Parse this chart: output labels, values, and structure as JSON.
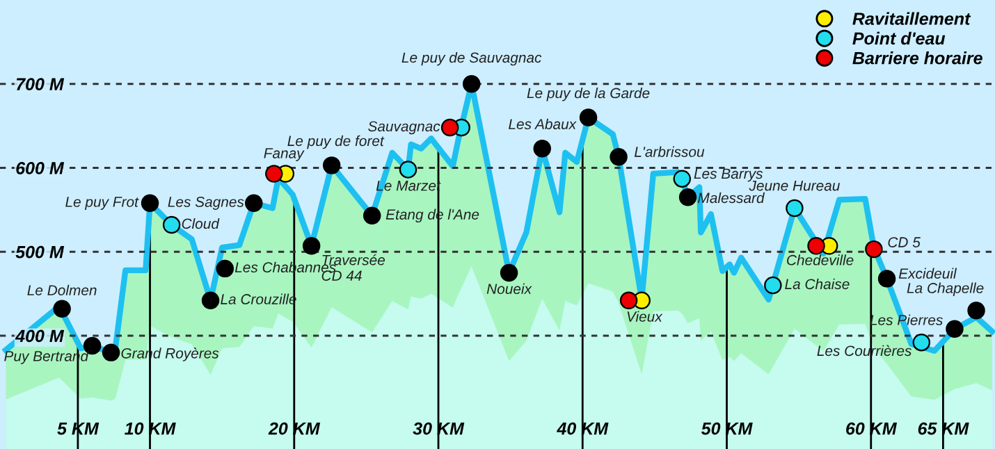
{
  "chart_data": {
    "type": "area",
    "xlim": [
      -0.4,
      68.6
    ],
    "ylim": [
      265,
      800
    ],
    "xticks": [
      {
        "value": 5,
        "label": "5 KM"
      },
      {
        "value": 10,
        "label": "10 KM"
      },
      {
        "value": 20,
        "label": "20 KM"
      },
      {
        "value": 30,
        "label": "30 KM"
      },
      {
        "value": 40,
        "label": "40 KM"
      },
      {
        "value": 50,
        "label": "50 KM"
      },
      {
        "value": 60,
        "label": "60 KM"
      },
      {
        "value": 65,
        "label": "65 KM"
      }
    ],
    "yticks": [
      {
        "value": 400,
        "label": "400 M"
      },
      {
        "value": 500,
        "label": "500 M"
      },
      {
        "value": 600,
        "label": "600 M"
      },
      {
        "value": 700,
        "label": "700 M"
      }
    ],
    "grid": "y",
    "legend": "top right",
    "ref_lines": [
      {
        "axis": "x",
        "value": 5,
        "color": "#000000"
      },
      {
        "axis": "x",
        "value": 10,
        "color": "#000000"
      },
      {
        "axis": "x",
        "value": 20,
        "color": "#000000"
      },
      {
        "axis": "x",
        "value": 30,
        "color": "#000000"
      },
      {
        "axis": "x",
        "value": 40,
        "color": "#000000"
      },
      {
        "axis": "x",
        "value": 50,
        "color": "#000000"
      },
      {
        "axis": "x",
        "value": 60,
        "color": "#000000"
      },
      {
        "axis": "x",
        "value": 65,
        "color": "#000000"
      }
    ],
    "series": [
      {
        "color": "#1ec0f0",
        "x": [
          0,
          3.7,
          5.2,
          6.0,
          7.3,
          7.6,
          8.3,
          9.7,
          10.0,
          11.5,
          12.9,
          14.2,
          15.0,
          16.2,
          17.2,
          18.5,
          18.9,
          19.9,
          21.2,
          22.6,
          25.4,
          26.8,
          27.9,
          28.1,
          28.8,
          29.5,
          31.0,
          31.4,
          32.3,
          34.9,
          36.1,
          37.2,
          38.4,
          38.8,
          39.6,
          40.4,
          42.1,
          42.5,
          44.1,
          44.9,
          46.6,
          46.9,
          47.3,
          48.1,
          48.2,
          48.9,
          49.7,
          50.2,
          50.5,
          51.0,
          52.9,
          54.7,
          56.7,
          57.8,
          59.6,
          60.2,
          61.1,
          62.8,
          64.4,
          65.8,
          67.3,
          68.4
        ],
        "values": [
          383,
          435,
          385,
          388,
          380,
          385,
          478,
          478,
          558,
          532,
          515,
          442,
          505,
          508,
          558,
          552,
          588,
          568,
          507,
          603,
          543,
          618,
          598,
          628,
          623,
          635,
          602,
          635,
          700,
          475,
          523,
          623,
          547,
          618,
          607,
          660,
          640,
          613,
          443,
          593,
          595,
          587,
          565,
          577,
          523,
          545,
          477,
          485,
          475,
          493,
          443,
          552,
          498,
          562,
          563,
          505,
          468,
          390,
          382,
          408,
          422,
          405
        ]
      },
      {
        "type": "scatter",
        "marker": "circle",
        "color": "#000000",
        "x": [
          3.9,
          6.0,
          7.3,
          10.0,
          14.2,
          15.2,
          17.2,
          21.2,
          22.6,
          25.4,
          32.3,
          34.9,
          37.2,
          40.4,
          42.5,
          47.3,
          61.1,
          65.8,
          67.3
        ],
        "values": [
          432,
          388,
          380,
          558,
          442,
          480,
          558,
          507,
          603,
          543,
          700,
          475,
          623,
          660,
          613,
          565,
          468,
          408,
          430
        ]
      },
      {
        "type": "scatter",
        "marker": "circle",
        "name": "Ravitaillement",
        "color": "#ffee00",
        "x": [
          19.4,
          44.1,
          57.1
        ],
        "values": [
          593,
          442,
          507
        ]
      },
      {
        "type": "scatter",
        "marker": "circle",
        "name": "Point d'eau",
        "color": "#22ddee",
        "x": [
          11.5,
          27.9,
          31.6,
          46.9,
          53.2,
          54.7,
          63.5
        ],
        "values": [
          532,
          598,
          648,
          587,
          460,
          552,
          392
        ]
      },
      {
        "type": "scatter",
        "marker": "circle",
        "name": "Barriere horaire",
        "color": "#ee0000",
        "x": [
          18.6,
          30.8,
          43.2,
          56.2,
          60.2
        ],
        "values": [
          593,
          648,
          442,
          507,
          503
        ]
      }
    ],
    "annotations": [
      {
        "text": "Le Dolmen",
        "x": 3.9,
        "y": 432
      },
      {
        "text": "Puy Bertrand",
        "x": 6.0,
        "y": 388
      },
      {
        "text": "Grand Royères",
        "x": 7.3,
        "y": 380
      },
      {
        "text": "Le puy Frot",
        "x": 10.0,
        "y": 558
      },
      {
        "text": "Cloud",
        "x": 11.5,
        "y": 532
      },
      {
        "text": "La Crouzille",
        "x": 14.2,
        "y": 442
      },
      {
        "text": "Les Chabannes",
        "x": 15.2,
        "y": 480
      },
      {
        "text": "Les Sagnes",
        "x": 17.2,
        "y": 558
      },
      {
        "text": "Fanay",
        "x": 18.6,
        "y": 593
      },
      {
        "text": "Traversée\nCD 44",
        "x": 21.2,
        "y": 507
      },
      {
        "text": "Le puy de foret",
        "x": 22.6,
        "y": 603
      },
      {
        "text": "Le Marzet",
        "x": 27.9,
        "y": 598
      },
      {
        "text": "Etang de l'Ane",
        "x": 25.4,
        "y": 543
      },
      {
        "text": "Sauvagnac",
        "x": 30.8,
        "y": 648
      },
      {
        "text": "Le puy de Sauvagnac",
        "x": 32.3,
        "y": 700
      },
      {
        "text": "Noueix",
        "x": 34.9,
        "y": 475
      },
      {
        "text": "Les Abaux",
        "x": 37.2,
        "y": 623
      },
      {
        "text": "Le puy de la Garde",
        "x": 40.4,
        "y": 660
      },
      {
        "text": "L'arbrissou",
        "x": 42.5,
        "y": 613
      },
      {
        "text": "Vieux",
        "x": 43.2,
        "y": 442
      },
      {
        "text": "Les Barrys",
        "x": 46.9,
        "y": 587
      },
      {
        "text": "Malessard",
        "x": 47.3,
        "y": 565
      },
      {
        "text": "La Chaise",
        "x": 53.2,
        "y": 460
      },
      {
        "text": "Jeune Hureau",
        "x": 54.7,
        "y": 552
      },
      {
        "text": "Chedeville",
        "x": 56.2,
        "y": 507
      },
      {
        "text": "CD 5",
        "x": 60.2,
        "y": 503
      },
      {
        "text": "Excideuil",
        "x": 61.1,
        "y": 468
      },
      {
        "text": "La Chapelle",
        "x": 67.3,
        "y": 430
      },
      {
        "text": "Les Pierres",
        "x": 65.8,
        "y": 408
      },
      {
        "text": "Les Courrières",
        "x": 63.5,
        "y": 392
      }
    ]
  }
}
